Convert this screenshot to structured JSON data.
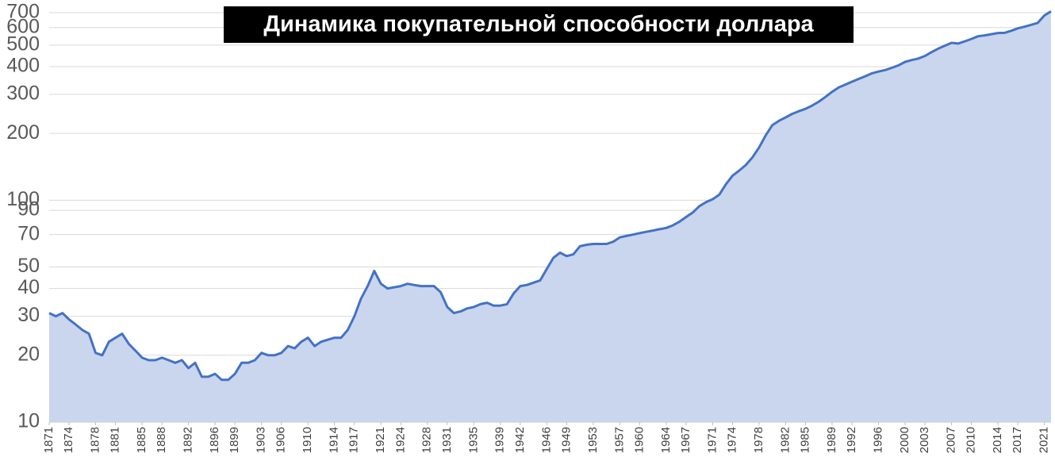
{
  "chart_data": {
    "type": "area",
    "title": "Динамика покупательной способности доллара",
    "log_scale": true,
    "grid": true,
    "x": [
      1871,
      1872,
      1873,
      1874,
      1875,
      1876,
      1877,
      1878,
      1879,
      1880,
      1881,
      1882,
      1883,
      1884,
      1885,
      1886,
      1887,
      1888,
      1889,
      1890,
      1891,
      1892,
      1893,
      1894,
      1895,
      1896,
      1897,
      1898,
      1899,
      1900,
      1901,
      1902,
      1903,
      1904,
      1905,
      1906,
      1907,
      1908,
      1909,
      1910,
      1911,
      1912,
      1913,
      1914,
      1915,
      1916,
      1917,
      1918,
      1919,
      1920,
      1921,
      1922,
      1923,
      1924,
      1925,
      1926,
      1927,
      1928,
      1929,
      1930,
      1931,
      1932,
      1933,
      1934,
      1935,
      1936,
      1937,
      1938,
      1939,
      1940,
      1941,
      1942,
      1943,
      1944,
      1945,
      1946,
      1947,
      1948,
      1949,
      1950,
      1951,
      1952,
      1953,
      1954,
      1955,
      1956,
      1957,
      1958,
      1959,
      1960,
      1961,
      1962,
      1963,
      1964,
      1965,
      1966,
      1967,
      1968,
      1969,
      1970,
      1971,
      1972,
      1973,
      1974,
      1975,
      1976,
      1977,
      1978,
      1979,
      1980,
      1981,
      1982,
      1983,
      1984,
      1985,
      1986,
      1987,
      1988,
      1989,
      1990,
      1991,
      1992,
      1993,
      1994,
      1995,
      1996,
      1997,
      1998,
      1999,
      2000,
      2001,
      2002,
      2003,
      2004,
      2005,
      2006,
      2007,
      2008,
      2009,
      2010,
      2011,
      2012,
      2013,
      2014,
      2015,
      2016,
      2017,
      2018,
      2019,
      2020,
      2021,
      2022
    ],
    "series": [
      {
        "color": "#4472c4",
        "fill": "#cad6ee",
        "values": [
          31,
          30,
          31,
          29,
          27.5,
          26,
          25,
          20.5,
          20,
          23,
          24,
          25,
          22.5,
          21,
          19.5,
          19,
          19,
          19.5,
          19,
          18.5,
          19,
          17.5,
          18.5,
          16,
          16,
          16.5,
          15.5,
          15.5,
          16.5,
          18.5,
          18.5,
          19,
          20.5,
          20,
          20,
          20.5,
          22,
          21.5,
          23,
          24,
          22,
          23,
          23.5,
          24,
          24,
          26,
          30,
          36,
          41,
          48,
          42,
          40,
          40.5,
          41,
          42,
          41.5,
          41,
          41,
          41,
          38.5,
          33,
          31,
          31.5,
          32.5,
          33,
          34,
          34.5,
          33.5,
          33.5,
          34,
          38,
          41,
          41.5,
          42.5,
          43.5,
          49,
          55,
          58,
          56,
          57,
          62,
          63,
          63.5,
          63.5,
          63.5,
          65,
          68,
          69,
          70,
          71,
          72,
          73,
          74,
          75,
          77,
          80,
          84,
          88,
          94,
          98,
          101,
          106,
          118,
          129,
          136,
          144,
          156,
          173,
          196,
          218,
          228,
          236,
          245,
          252,
          258,
          267,
          278,
          292,
          308,
          322,
          332,
          342,
          352,
          362,
          373,
          380,
          386,
          395,
          405,
          420,
          428,
          435,
          447,
          465,
          482,
          497,
          512,
          508,
          520,
          533,
          548,
          553,
          560,
          567,
          568,
          580,
          595,
          605,
          617,
          630,
          680,
          710
        ]
      }
    ],
    "xlim": [
      1871,
      2022
    ],
    "xticks": [
      1871,
      1874,
      1878,
      1881,
      1885,
      1888,
      1892,
      1896,
      1899,
      1903,
      1906,
      1910,
      1914,
      1917,
      1921,
      1924,
      1928,
      1931,
      1935,
      1939,
      1942,
      1946,
      1949,
      1953,
      1957,
      1960,
      1964,
      1967,
      1971,
      1974,
      1978,
      1982,
      1985,
      1989,
      1992,
      1996,
      2000,
      2003,
      2007,
      2010,
      2014,
      2017,
      2021
    ],
    "ylim": [
      10,
      760
    ],
    "yticks": [
      10,
      20,
      30,
      40,
      50,
      70,
      90,
      100,
      200,
      300,
      400,
      500,
      600,
      700
    ]
  }
}
